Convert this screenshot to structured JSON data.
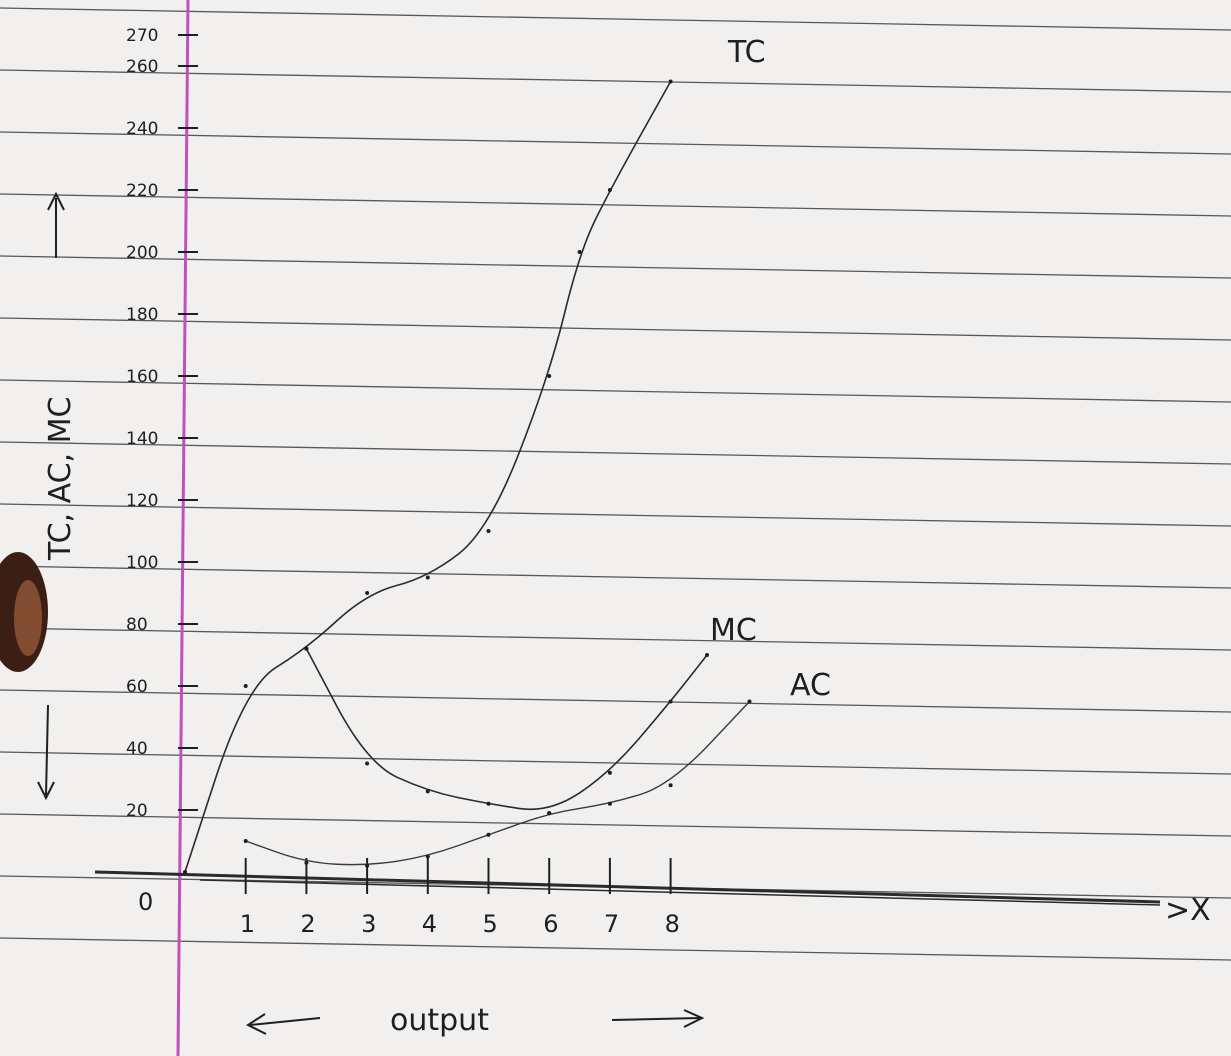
{
  "chart_data": {
    "type": "line",
    "x": [
      0,
      1,
      2,
      3,
      4,
      5,
      6,
      7,
      8
    ],
    "x_tick_labels": [
      "1",
      "2",
      "3",
      "4",
      "5",
      "6",
      "7",
      "8"
    ],
    "origin_label": "0",
    "y_tick_labels": [
      "20",
      "40",
      "60",
      "80",
      "100",
      "120",
      "140",
      "160",
      "180",
      "200",
      "220",
      "240",
      "260",
      "270"
    ],
    "ylabel": "TC, AC, MC",
    "xlabel": "output",
    "x_axis_end_label": ">X",
    "series": [
      {
        "name": "TC",
        "x": [
          0,
          1,
          2,
          3,
          4,
          5,
          6,
          6.5,
          7,
          8
        ],
        "values": [
          0,
          60,
          72,
          90,
          95,
          110,
          160,
          200,
          220,
          255
        ]
      },
      {
        "name": "MC",
        "x": [
          2,
          3,
          4,
          5,
          6,
          7,
          8,
          8.6
        ],
        "values": [
          72,
          35,
          26,
          22,
          19,
          32,
          55,
          70
        ]
      },
      {
        "name": "AC",
        "x": [
          1,
          2,
          3,
          4,
          5,
          6,
          7,
          8,
          9.3
        ],
        "values": [
          10,
          3,
          2,
          5,
          12,
          19,
          22,
          28,
          55
        ]
      }
    ],
    "series_label_text": {
      "TC": "TC",
      "MC": "MC",
      "AC": "AC"
    },
    "xlim": [
      0,
      8.5
    ],
    "ylim": [
      0,
      270
    ],
    "grid": "horizontal notebook lines"
  },
  "colors": {
    "paper": "#f1f0ee",
    "rule": "#55585e",
    "margin": "#c24fc0",
    "ink": "#1f1f1f"
  }
}
